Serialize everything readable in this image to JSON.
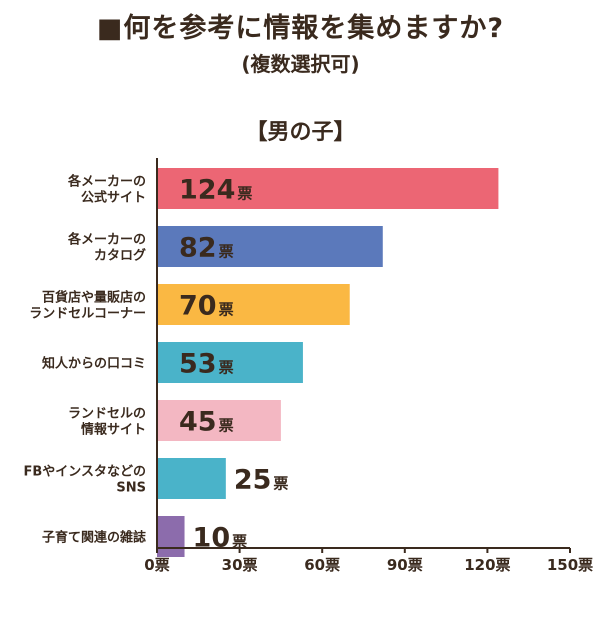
{
  "chart_data": {
    "type": "bar",
    "orientation": "horizontal",
    "title": "■何を参考に情報を集めますか?",
    "subtitle": "(複数選択可)",
    "section_label": "【男の子】",
    "value_unit": "票",
    "categories": [
      [
        "各メーカーの",
        "公式サイト"
      ],
      [
        "各メーカーの",
        "カタログ"
      ],
      [
        "百貨店や量販店の",
        "ランドセルコーナー"
      ],
      [
        "知人からの口コミ"
      ],
      [
        "ランドセルの",
        "情報サイト"
      ],
      [
        "FBやインスタなどの",
        "SNS"
      ],
      [
        "子育て関連の雑誌"
      ]
    ],
    "values": [
      124,
      82,
      70,
      53,
      45,
      25,
      10
    ],
    "bar_colors": [
      "#ec6674",
      "#5b79bb",
      "#fab843",
      "#4ab3c9",
      "#f3b7c2",
      "#4ab3c9",
      "#8c6cac"
    ],
    "value_text_colors": [
      "#3a2a1e",
      "#3a2a1e",
      "#3a2a1e",
      "#3a2a1e",
      "#3a2a1e",
      "#3a2a1e",
      "#3a2a1e"
    ],
    "xlim": [
      0,
      150
    ],
    "xticks": [
      0,
      30,
      60,
      90,
      120,
      150
    ],
    "xtick_labels": [
      "0票",
      "30票",
      "60票",
      "90票",
      "120票",
      "150票"
    ],
    "grid": false,
    "legend": "none"
  }
}
